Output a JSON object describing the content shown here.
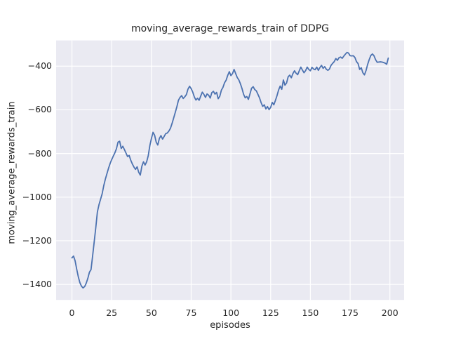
{
  "figure": {
    "background": "#FFFFFF"
  },
  "chart_data": {
    "type": "line",
    "title": "moving_average_rewards_train of DDPG",
    "xlabel": "episodes",
    "ylabel": "moving_average_rewards_train",
    "x_ticks": [
      0,
      25,
      50,
      75,
      100,
      125,
      150,
      175,
      200
    ],
    "y_ticks": [
      -400,
      -600,
      -800,
      -1000,
      -1200,
      -1400
    ],
    "xlim": [
      -9.95,
      208.95
    ],
    "ylim": [
      -1471,
      -282
    ],
    "grid": true,
    "legend": false,
    "style": {
      "axes_background": "#EAEAF2",
      "grid_color": "#FFFFFF",
      "line_color": "#4C72B0",
      "text_color": "#262626",
      "line_width": 1.8
    },
    "series": [
      {
        "name": "moving_average_rewards_train",
        "x_start": 0,
        "x_step": 1,
        "values": [
          -1278,
          -1270,
          -1292,
          -1330,
          -1365,
          -1392,
          -1408,
          -1416,
          -1410,
          -1394,
          -1372,
          -1344,
          -1332,
          -1270,
          -1205,
          -1140,
          -1068,
          -1035,
          -1010,
          -985,
          -948,
          -918,
          -893,
          -868,
          -846,
          -828,
          -812,
          -797,
          -778,
          -748,
          -744,
          -777,
          -767,
          -782,
          -798,
          -814,
          -809,
          -831,
          -848,
          -862,
          -873,
          -861,
          -886,
          -899,
          -858,
          -838,
          -853,
          -838,
          -810,
          -764,
          -731,
          -703,
          -716,
          -748,
          -761,
          -731,
          -718,
          -734,
          -722,
          -709,
          -706,
          -697,
          -684,
          -662,
          -637,
          -612,
          -586,
          -556,
          -543,
          -535,
          -548,
          -540,
          -530,
          -505,
          -492,
          -503,
          -519,
          -541,
          -555,
          -547,
          -556,
          -537,
          -519,
          -529,
          -543,
          -527,
          -533,
          -546,
          -521,
          -515,
          -528,
          -520,
          -549,
          -538,
          -510,
          -497,
          -476,
          -464,
          -442,
          -425,
          -443,
          -434,
          -415,
          -434,
          -452,
          -463,
          -481,
          -503,
          -529,
          -545,
          -539,
          -552,
          -527,
          -501,
          -494,
          -507,
          -513,
          -529,
          -545,
          -567,
          -584,
          -577,
          -596,
          -585,
          -599,
          -589,
          -566,
          -577,
          -557,
          -535,
          -509,
          -491,
          -506,
          -463,
          -487,
          -477,
          -449,
          -441,
          -453,
          -434,
          -421,
          -432,
          -439,
          -421,
          -404,
          -418,
          -430,
          -420,
          -404,
          -415,
          -421,
          -405,
          -413,
          -416,
          -404,
          -419,
          -406,
          -396,
          -410,
          -402,
          -414,
          -419,
          -413,
          -396,
          -387,
          -379,
          -365,
          -373,
          -361,
          -358,
          -364,
          -354,
          -345,
          -337,
          -340,
          -352,
          -353,
          -352,
          -360,
          -379,
          -388,
          -415,
          -407,
          -430,
          -440,
          -420,
          -392,
          -370,
          -351,
          -344,
          -352,
          -370,
          -382,
          -381,
          -380,
          -381,
          -383,
          -386,
          -391,
          -363
        ]
      }
    ]
  }
}
